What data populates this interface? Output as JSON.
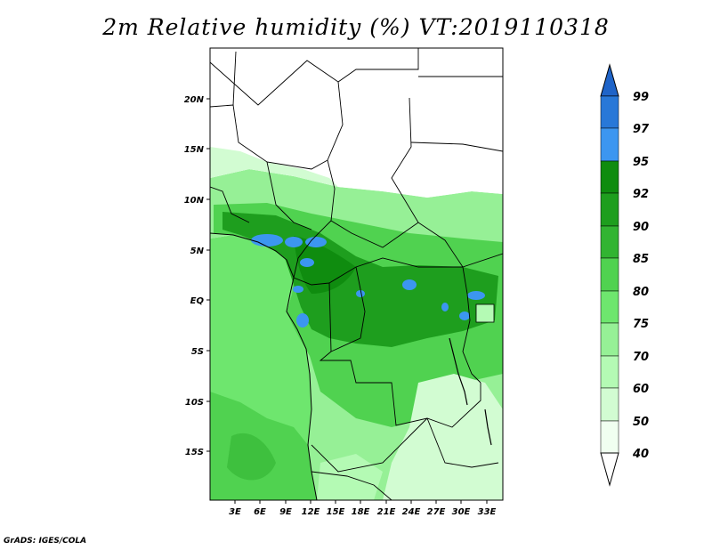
{
  "title": "2m Relative humidity (%) VT:2019110318",
  "credit": "GrADS: IGES/COLA",
  "map": {
    "lon_ticks": [
      "3E",
      "6E",
      "9E",
      "12E",
      "15E",
      "18E",
      "21E",
      "24E",
      "27E",
      "30E",
      "33E"
    ],
    "lat_ticks": [
      "20N",
      "15N",
      "10N",
      "5N",
      "EQ",
      "5S",
      "10S",
      "15S"
    ]
  },
  "colorbar": {
    "levels": [
      "99",
      "97",
      "95",
      "92",
      "90",
      "85",
      "80",
      "75",
      "70",
      "60",
      "50",
      "40"
    ],
    "colors": [
      "#1f64c8",
      "#2878d8",
      "#3c96f0",
      "#0f8c0f",
      "#1e9e1e",
      "#32b432",
      "#50d250",
      "#6ee66e",
      "#96f096",
      "#b4fab4",
      "#d2fcd2",
      "#f0fff0"
    ]
  }
}
